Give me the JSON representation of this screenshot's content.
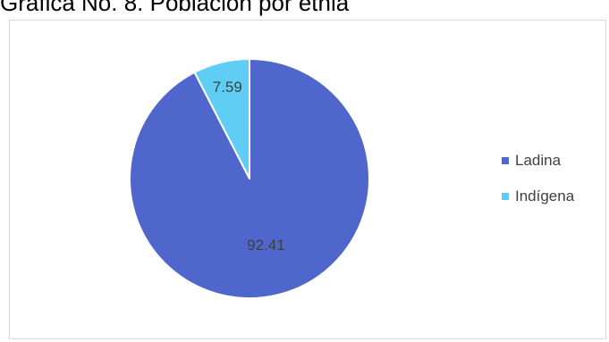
{
  "chart_data": {
    "type": "pie",
    "title": "Gráfica No. 8. Población por etnia",
    "categories": [
      "Ladina",
      "Indígena"
    ],
    "values": [
      92.41,
      7.59
    ],
    "data_labels": [
      "92.41",
      "7.59"
    ],
    "colors": [
      "#4f66cc",
      "#5fcdf4"
    ],
    "legend_position": "right"
  }
}
